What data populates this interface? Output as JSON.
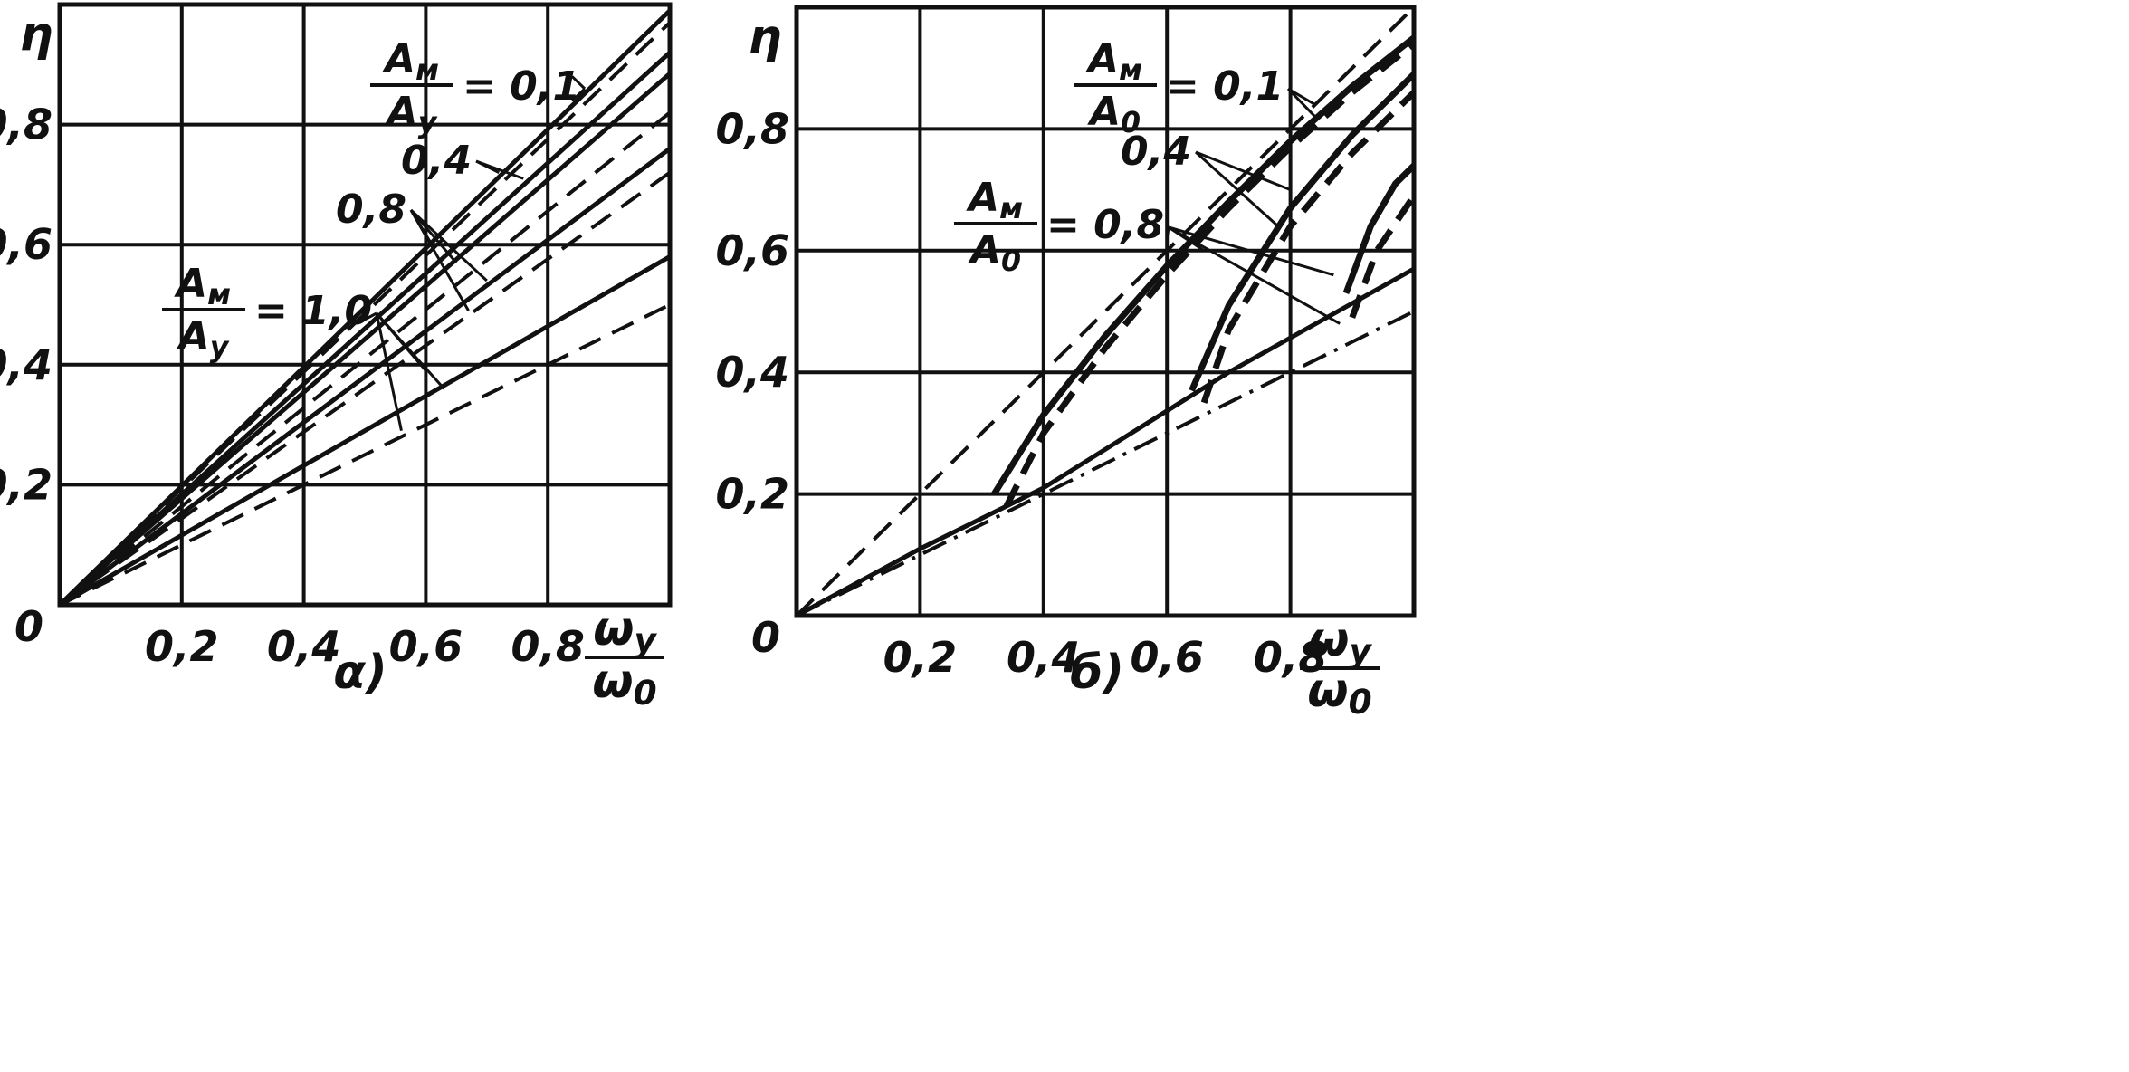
{
  "chart_data": [
    {
      "id": "a",
      "type": "line",
      "caption": "α)",
      "ylabel": "η",
      "xlabel_num": "ωy",
      "xlabel_den": "ω0",
      "origin_label": "0",
      "xlim": [
        0,
        1.0
      ],
      "ylim": [
        0,
        1.0
      ],
      "grid": true,
      "x_ticks": [
        {
          "value": 0.2,
          "label": "0,2"
        },
        {
          "value": 0.4,
          "label": "0,4"
        },
        {
          "value": 0.6,
          "label": "0,6"
        },
        {
          "value": 0.8,
          "label": "0,8"
        }
      ],
      "y_ticks": [
        {
          "value": 0.2,
          "label": "0,2"
        },
        {
          "value": 0.4,
          "label": "0,4"
        },
        {
          "value": 0.6,
          "label": "0,6"
        },
        {
          "value": 0.8,
          "label": "0,8"
        }
      ],
      "annotations": [
        {
          "frac_num": "Aм",
          "frac_den": "Aу",
          "text": "= 0,1",
          "targets": [
            [
              0.84,
              0.88
            ],
            [
              0.84,
              0.84
            ]
          ]
        },
        {
          "text": "0,4",
          "targets": [
            [
              0.72,
              0.72
            ],
            [
              0.76,
              0.71
            ]
          ]
        },
        {
          "text": "0,8",
          "targets": [
            [
              0.61,
              0.6
            ],
            [
              0.65,
              0.57
            ],
            [
              0.7,
              0.54
            ],
            [
              0.67,
              0.49
            ]
          ]
        },
        {
          "frac_num": "Aм",
          "frac_den": "Aу",
          "text": "= 1,0",
          "targets": [
            [
              0.49,
              0.47
            ],
            [
              0.6,
              0.39
            ],
            [
              0.63,
              0.36
            ],
            [
              0.56,
              0.29
            ]
          ]
        }
      ],
      "series": [
        {
          "style": "solid",
          "x": [
            0,
            1.0
          ],
          "y": [
            0,
            0.99
          ]
        },
        {
          "style": "dashed",
          "x": [
            0,
            1.0
          ],
          "y": [
            0,
            0.97
          ]
        },
        {
          "style": "solid",
          "x": [
            0,
            1.0
          ],
          "y": [
            0,
            0.92
          ]
        },
        {
          "style": "dashed",
          "x": [
            0,
            1.0
          ],
          "y": [
            0,
            0.885
          ]
        },
        {
          "style": "solid",
          "x": [
            0,
            1.0
          ],
          "y": [
            0,
            0.885
          ]
        },
        {
          "style": "dashed",
          "x": [
            0,
            1.0
          ],
          "y": [
            0,
            0.82
          ]
        },
        {
          "style": "solid",
          "x": [
            0,
            1.0
          ],
          "y": [
            0,
            0.76
          ]
        },
        {
          "style": "dashed",
          "x": [
            0,
            1.0
          ],
          "y": [
            0,
            0.72
          ]
        },
        {
          "style": "solid",
          "x": [
            0,
            1.0
          ],
          "y": [
            0,
            0.58
          ]
        },
        {
          "style": "dashed",
          "x": [
            0,
            1.0
          ],
          "y": [
            0,
            0.5
          ]
        }
      ]
    },
    {
      "id": "b",
      "type": "line",
      "caption": "б)",
      "ylabel": "η",
      "xlabel_num": "ωy",
      "xlabel_den": "ω0",
      "origin_label": "0",
      "xlim": [
        0,
        1.0
      ],
      "ylim": [
        0,
        1.0
      ],
      "grid": true,
      "x_ticks": [
        {
          "value": 0.2,
          "label": "0,2"
        },
        {
          "value": 0.4,
          "label": "0,4"
        },
        {
          "value": 0.6,
          "label": "0,6"
        },
        {
          "value": 0.8,
          "label": "0,8"
        }
      ],
      "y_ticks": [
        {
          "value": 0.2,
          "label": "0,2"
        },
        {
          "value": 0.4,
          "label": "0,4"
        },
        {
          "value": 0.6,
          "label": "0,6"
        },
        {
          "value": 0.8,
          "label": "0,8"
        }
      ],
      "annotations": [
        {
          "frac_num": "Aм",
          "frac_den": "A0",
          "text": "= 0,1",
          "targets": [
            [
              0.84,
              0.84
            ],
            [
              0.84,
              0.82
            ]
          ]
        },
        {
          "text": "0,4",
          "targets": [
            [
              0.8,
              0.7
            ],
            [
              0.78,
              0.64
            ]
          ]
        },
        {
          "frac_num": "Aм",
          "frac_den": "A0",
          "text": "= 0,8",
          "targets": [
            [
              0.6,
              0.62
            ],
            [
              0.66,
              0.6
            ],
            [
              0.87,
              0.56
            ],
            [
              0.88,
              0.48
            ]
          ]
        }
      ],
      "series": [
        {
          "style": "dashed",
          "x": [
            0,
            1.0
          ],
          "y": [
            0,
            1.0
          ]
        },
        {
          "style": "dashdot",
          "x": [
            0,
            1.0
          ],
          "y": [
            0,
            0.5
          ]
        },
        {
          "style": "solid",
          "x": [
            0,
            0.2,
            0.4,
            0.7,
            1.0
          ],
          "y": [
            0,
            0.11,
            0.21,
            0.4,
            0.57
          ]
        },
        {
          "style": "solid-bold",
          "x": [
            0.32,
            0.4,
            0.5,
            0.6,
            0.7,
            0.8,
            0.9,
            1.0
          ],
          "y": [
            0.2,
            0.33,
            0.46,
            0.575,
            0.68,
            0.78,
            0.87,
            0.95
          ]
        },
        {
          "style": "dashed-bold",
          "x": [
            0.34,
            0.4,
            0.5,
            0.6,
            0.7,
            0.8,
            0.9,
            1.0
          ],
          "y": [
            0.18,
            0.3,
            0.44,
            0.56,
            0.67,
            0.77,
            0.86,
            0.94
          ]
        },
        {
          "style": "solid-bold",
          "x": [
            0.64,
            0.7,
            0.8,
            0.9,
            1.0
          ],
          "y": [
            0.37,
            0.51,
            0.67,
            0.79,
            0.89
          ]
        },
        {
          "style": "dashed-bold",
          "x": [
            0.66,
            0.7,
            0.8,
            0.9,
            1.0
          ],
          "y": [
            0.35,
            0.47,
            0.64,
            0.76,
            0.86
          ]
        },
        {
          "style": "solid-bold",
          "x": [
            0.89,
            0.93,
            0.97,
            1.0
          ],
          "y": [
            0.53,
            0.64,
            0.71,
            0.74
          ]
        },
        {
          "style": "dashed-bold",
          "x": [
            0.9,
            0.94,
            0.98,
            1.0
          ],
          "y": [
            0.49,
            0.6,
            0.66,
            0.69
          ]
        }
      ]
    }
  ]
}
